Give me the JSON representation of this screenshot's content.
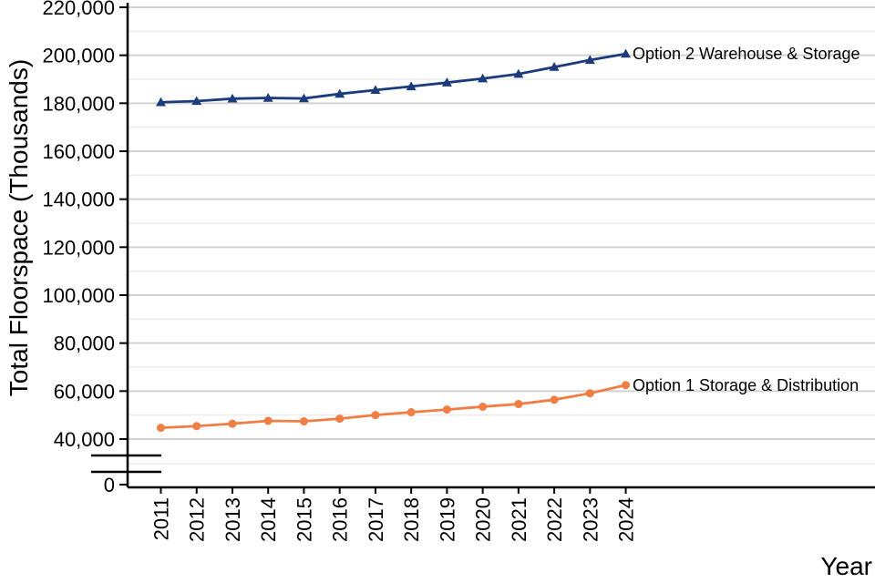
{
  "chart_data": {
    "type": "line",
    "title": "",
    "xlabel": "Year",
    "ylabel": "Total Floorspace (Thousands)",
    "categories": [
      "2011",
      "2012",
      "2013",
      "2014",
      "2015",
      "2016",
      "2017",
      "2018",
      "2019",
      "2020",
      "2021",
      "2022",
      "2023",
      "2024"
    ],
    "series": [
      {
        "name": "Option 2 Warehouse & Storage",
        "color": "#1C3B7D",
        "marker": "triangle",
        "values": [
          180400,
          180900,
          181900,
          182200,
          182000,
          183900,
          185500,
          187000,
          188600,
          190300,
          192200,
          195100,
          198000,
          200600
        ]
      },
      {
        "name": "Option 1 Storage & Distribution",
        "color": "#EF7D44",
        "marker": "circle",
        "values": [
          44700,
          45400,
          46400,
          47600,
          47400,
          48500,
          50000,
          51200,
          52300,
          53500,
          54600,
          56400,
          59100,
          62500
        ]
      }
    ],
    "y_ticks": [
      0,
      40000,
      60000,
      80000,
      100000,
      120000,
      140000,
      160000,
      180000,
      200000,
      220000
    ],
    "ylim_visible": [
      40000,
      220000
    ],
    "axis_break_between": [
      0,
      40000
    ],
    "grid": "major-and-minor",
    "legend_position": "line-end-labels",
    "colors": {
      "axis": "#000000",
      "grid_major": "#d2d2d2",
      "grid_minor": "#ececec",
      "background": "#ffffff"
    }
  }
}
